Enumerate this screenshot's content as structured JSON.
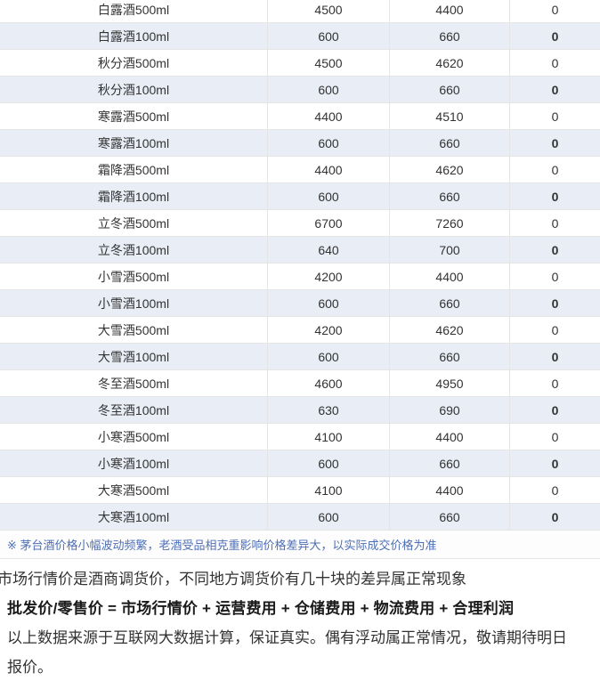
{
  "table": {
    "rows": [
      {
        "label": "白露酒500ml",
        "values": [
          "4500",
          "4400",
          "0"
        ]
      },
      {
        "label": "白露酒100ml",
        "values": [
          "600",
          "660",
          "0"
        ]
      },
      {
        "label": "秋分酒500ml",
        "values": [
          "4500",
          "4620",
          "0"
        ]
      },
      {
        "label": "秋分酒100ml",
        "values": [
          "600",
          "660",
          "0"
        ]
      },
      {
        "label": "寒露酒500ml",
        "values": [
          "4400",
          "4510",
          "0"
        ]
      },
      {
        "label": "寒露酒100ml",
        "values": [
          "600",
          "660",
          "0"
        ]
      },
      {
        "label": "霜降酒500ml",
        "values": [
          "4400",
          "4620",
          "0"
        ]
      },
      {
        "label": "霜降酒100ml",
        "values": [
          "600",
          "660",
          "0"
        ]
      },
      {
        "label": "立冬酒500ml",
        "values": [
          "6700",
          "7260",
          "0"
        ]
      },
      {
        "label": "立冬酒100ml",
        "values": [
          "640",
          "700",
          "0"
        ]
      },
      {
        "label": "小雪酒500ml",
        "values": [
          "4200",
          "4400",
          "0"
        ]
      },
      {
        "label": "小雪酒100ml",
        "values": [
          "600",
          "660",
          "0"
        ]
      },
      {
        "label": "大雪酒500ml",
        "values": [
          "4200",
          "4620",
          "0"
        ]
      },
      {
        "label": "大雪酒100ml",
        "values": [
          "600",
          "660",
          "0"
        ]
      },
      {
        "label": "冬至酒500ml",
        "values": [
          "4600",
          "4950",
          "0"
        ]
      },
      {
        "label": "冬至酒100ml",
        "values": [
          "630",
          "690",
          "0"
        ]
      },
      {
        "label": "小寒酒500ml",
        "values": [
          "4100",
          "4400",
          "0"
        ]
      },
      {
        "label": "小寒酒100ml",
        "values": [
          "600",
          "660",
          "0"
        ]
      },
      {
        "label": "大寒酒500ml",
        "values": [
          "4100",
          "4400",
          "0"
        ]
      },
      {
        "label": "大寒酒100ml",
        "values": [
          "600",
          "660",
          "0"
        ]
      }
    ]
  },
  "note": "※ 茅台酒价格小幅波动频繁，老酒受品相克重影响价格差异大，以实际成交价格为准",
  "footer": {
    "remark": "市场行情价是酒商调货价，不同地方调货价有几十块的差异属正常现象",
    "formula": "批发价/零售价 = 市场行情价 + 运营费用 + 仓储费用 + 物流费用 + 合理利润",
    "disclaimer_line1": "以上数据来源于互联网大数据计算，保证真实。偶有浮动属正常情况，敬请期待明日",
    "disclaimer_line2": "报价。"
  },
  "colors": {
    "alt_row_bg": "#e8edf6",
    "border": "#e5e5e5",
    "note_text": "#4d6fb5",
    "body_text": "#333333"
  }
}
